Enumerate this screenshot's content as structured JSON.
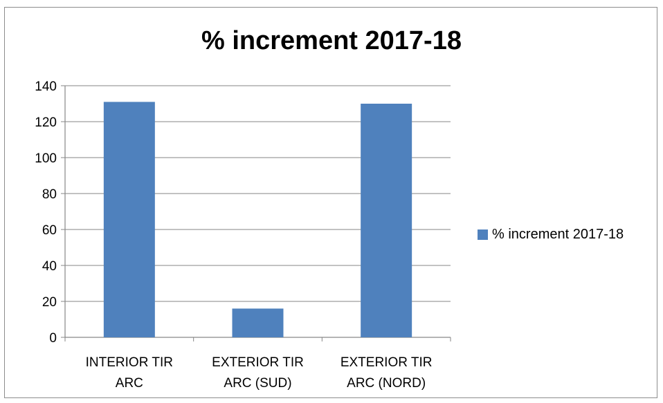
{
  "chart_data": {
    "type": "bar",
    "title": "% increment 2017-18",
    "categories": [
      [
        "INTERIOR TIR",
        "ARC"
      ],
      [
        "EXTERIOR TIR",
        "ARC (SUD)"
      ],
      [
        "EXTERIOR TIR",
        "ARC (NORD)"
      ]
    ],
    "series": [
      {
        "name": "% increment 2017-18",
        "values": [
          131,
          16,
          130
        ]
      }
    ],
    "ylim": [
      0,
      140
    ],
    "yticks": [
      0,
      20,
      40,
      60,
      80,
      100,
      120,
      140
    ],
    "grid": true,
    "legend_position": "right",
    "colors": {
      "bar": "#4f81bd",
      "grid": "#868686",
      "axis": "#868686"
    }
  }
}
